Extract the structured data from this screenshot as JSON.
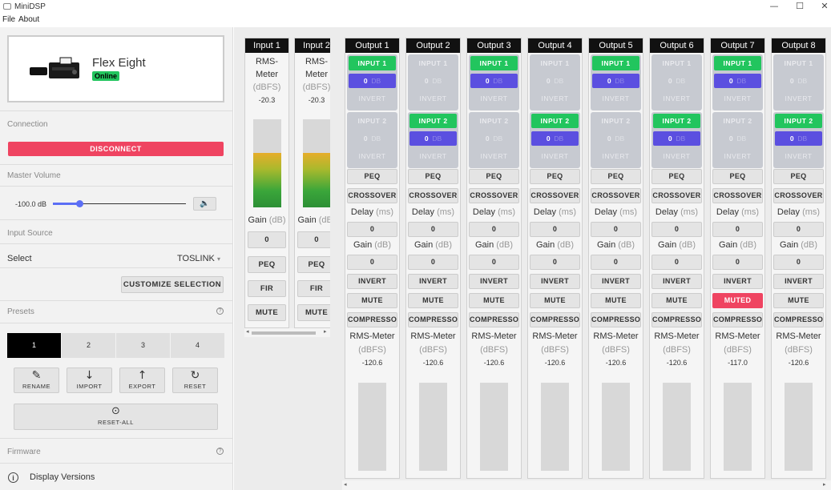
{
  "window": {
    "title": "MiniDSP",
    "minimize": "—",
    "maximize": "☐",
    "close": "✕"
  },
  "menu": {
    "file": "File",
    "about": "About"
  },
  "device": {
    "name": "Flex Eight",
    "status": "Online"
  },
  "connection": {
    "label": "Connection",
    "disconnect": "DISCONNECT"
  },
  "master_volume": {
    "label": "Master Volume",
    "value": "-100.0 dB",
    "level_fraction": 0.2,
    "mute_icon": "speaker-icon"
  },
  "input_source": {
    "label": "Input Source",
    "select_label": "Select",
    "selected": "TOSLINK",
    "customize": "CUSTOMIZE SELECTION"
  },
  "presets": {
    "label": "Presets",
    "items": [
      "1",
      "2",
      "3",
      "4"
    ],
    "active": "1",
    "actions": [
      {
        "label": "RENAME",
        "icon": "✎"
      },
      {
        "label": "IMPORT",
        "icon": "↓"
      },
      {
        "label": "EXPORT",
        "icon": "↑"
      },
      {
        "label": "RESET",
        "icon": "↻"
      }
    ],
    "reset_all": {
      "label": "RESET-ALL",
      "icon": "⊙"
    }
  },
  "firmware": {
    "label": "Firmware",
    "display_versions": "Display Versions"
  },
  "inputs": [
    {
      "name": "Input 1",
      "meter_label": "RMS-Meter",
      "meter_unit": "(dBFS)",
      "meter_value": "-20.3",
      "level": 0.62,
      "gain_label": "Gain",
      "gain_unit": "(dB)",
      "gain": "0",
      "peq": "PEQ",
      "fir": "FIR",
      "mute": "MUTE"
    },
    {
      "name": "Input 2",
      "meter_label": "RMS-Meter",
      "meter_unit": "(dBFS)",
      "meter_value": "-20.3",
      "level": 0.62,
      "gain_label": "Gain",
      "gain_unit": "(dB)",
      "gain": "0",
      "peq": "PEQ",
      "fir": "FIR",
      "mute": "MUTE"
    }
  ],
  "outputs": [
    {
      "name": "Output 1",
      "in1": {
        "label": "INPUT 1",
        "on": true,
        "gain": "0",
        "unit": "DB",
        "invert": "INVERT"
      },
      "in2": {
        "label": "INPUT 2",
        "on": false,
        "gain": "0",
        "unit": "DB",
        "invert": "INVERT"
      },
      "peq": "PEQ",
      "crossover": "CROSSOVER",
      "delay_label": "Delay",
      "delay_unit": "(ms)",
      "delay": "0",
      "gain_label": "Gain",
      "gain_unit": "(dB)",
      "gain": "0",
      "invert": "INVERT",
      "mute": "MUTE",
      "muted": false,
      "compressor": "COMPRESSOR",
      "meter_label": "RMS-Meter",
      "meter_unit": "(dBFS)",
      "meter_value": "-120.6",
      "level": 0.0
    },
    {
      "name": "Output 2",
      "in1": {
        "label": "INPUT 1",
        "on": false,
        "gain": "0",
        "unit": "DB",
        "invert": "INVERT"
      },
      "in2": {
        "label": "INPUT 2",
        "on": true,
        "gain": "0",
        "unit": "DB",
        "invert": "INVERT"
      },
      "peq": "PEQ",
      "crossover": "CROSSOVER",
      "delay_label": "Delay",
      "delay_unit": "(ms)",
      "delay": "0",
      "gain_label": "Gain",
      "gain_unit": "(dB)",
      "gain": "0",
      "invert": "INVERT",
      "mute": "MUTE",
      "muted": false,
      "compressor": "COMPRESSOR",
      "meter_label": "RMS-Meter",
      "meter_unit": "(dBFS)",
      "meter_value": "-120.6",
      "level": 0.0
    },
    {
      "name": "Output 3",
      "in1": {
        "label": "INPUT 1",
        "on": true,
        "gain": "0",
        "unit": "DB",
        "invert": "INVERT"
      },
      "in2": {
        "label": "INPUT 2",
        "on": false,
        "gain": "0",
        "unit": "DB",
        "invert": "INVERT"
      },
      "peq": "PEQ",
      "crossover": "CROSSOVER",
      "delay_label": "Delay",
      "delay_unit": "(ms)",
      "delay": "0",
      "gain_label": "Gain",
      "gain_unit": "(dB)",
      "gain": "0",
      "invert": "INVERT",
      "mute": "MUTE",
      "muted": false,
      "compressor": "COMPRESSOR",
      "meter_label": "RMS-Meter",
      "meter_unit": "(dBFS)",
      "meter_value": "-120.6",
      "level": 0.0
    },
    {
      "name": "Output 4",
      "in1": {
        "label": "INPUT 1",
        "on": false,
        "gain": "0",
        "unit": "DB",
        "invert": "INVERT"
      },
      "in2": {
        "label": "INPUT 2",
        "on": true,
        "gain": "0",
        "unit": "DB",
        "invert": "INVERT"
      },
      "peq": "PEQ",
      "crossover": "CROSSOVER",
      "delay_label": "Delay",
      "delay_unit": "(ms)",
      "delay": "0",
      "gain_label": "Gain",
      "gain_unit": "(dB)",
      "gain": "0",
      "invert": "INVERT",
      "mute": "MUTE",
      "muted": false,
      "compressor": "COMPRESSOR",
      "meter_label": "RMS-Meter",
      "meter_unit": "(dBFS)",
      "meter_value": "-120.6",
      "level": 0.0
    },
    {
      "name": "Output 5",
      "in1": {
        "label": "INPUT 1",
        "on": true,
        "gain": "0",
        "unit": "DB",
        "invert": "INVERT"
      },
      "in2": {
        "label": "INPUT 2",
        "on": false,
        "gain": "0",
        "unit": "DB",
        "invert": "INVERT"
      },
      "peq": "PEQ",
      "crossover": "CROSSOVER",
      "delay_label": "Delay",
      "delay_unit": "(ms)",
      "delay": "0",
      "gain_label": "Gain",
      "gain_unit": "(dB)",
      "gain": "0",
      "invert": "INVERT",
      "mute": "MUTE",
      "muted": false,
      "compressor": "COMPRESSOR",
      "meter_label": "RMS-Meter",
      "meter_unit": "(dBFS)",
      "meter_value": "-120.6",
      "level": 0.0
    },
    {
      "name": "Output 6",
      "in1": {
        "label": "INPUT 1",
        "on": false,
        "gain": "0",
        "unit": "DB",
        "invert": "INVERT"
      },
      "in2": {
        "label": "INPUT 2",
        "on": true,
        "gain": "0",
        "unit": "DB",
        "invert": "INVERT"
      },
      "peq": "PEQ",
      "crossover": "CROSSOVER",
      "delay_label": "Delay",
      "delay_unit": "(ms)",
      "delay": "0",
      "gain_label": "Gain",
      "gain_unit": "(dB)",
      "gain": "0",
      "invert": "INVERT",
      "mute": "MUTE",
      "muted": false,
      "compressor": "COMPRESSOR",
      "meter_label": "RMS-Meter",
      "meter_unit": "(dBFS)",
      "meter_value": "-120.6",
      "level": 0.0
    },
    {
      "name": "Output 7",
      "in1": {
        "label": "INPUT 1",
        "on": true,
        "gain": "0",
        "unit": "DB",
        "invert": "INVERT"
      },
      "in2": {
        "label": "INPUT 2",
        "on": false,
        "gain": "0",
        "unit": "DB",
        "invert": "INVERT"
      },
      "peq": "PEQ",
      "crossover": "CROSSOVER",
      "delay_label": "Delay",
      "delay_unit": "(ms)",
      "delay": "0",
      "gain_label": "Gain",
      "gain_unit": "(dB)",
      "gain": "0",
      "invert": "INVERT",
      "mute": "MUTED",
      "muted": true,
      "compressor": "COMPRESSOR",
      "meter_label": "RMS-Meter",
      "meter_unit": "(dBFS)",
      "meter_value": "-117.0",
      "level": 0.0
    },
    {
      "name": "Output 8",
      "in1": {
        "label": "INPUT 1",
        "on": false,
        "gain": "0",
        "unit": "DB",
        "invert": "INVERT"
      },
      "in2": {
        "label": "INPUT 2",
        "on": true,
        "gain": "0",
        "unit": "DB",
        "invert": "INVERT"
      },
      "peq": "PEQ",
      "crossover": "CROSSOVER",
      "delay_label": "Delay",
      "delay_unit": "(ms)",
      "delay": "0",
      "gain_label": "Gain",
      "gain_unit": "(dB)",
      "gain": "0",
      "invert": "INVERT",
      "mute": "MUTE",
      "muted": false,
      "compressor": "COMPRESSOR",
      "meter_label": "RMS-Meter",
      "meter_unit": "(dBFS)",
      "meter_value": "-120.6",
      "level": 0.0
    }
  ],
  "colors": {
    "accent": "#5b6ef5",
    "route_on": "#22c55e",
    "route_gain": "#5b4fe0",
    "danger": "#ef4461"
  }
}
